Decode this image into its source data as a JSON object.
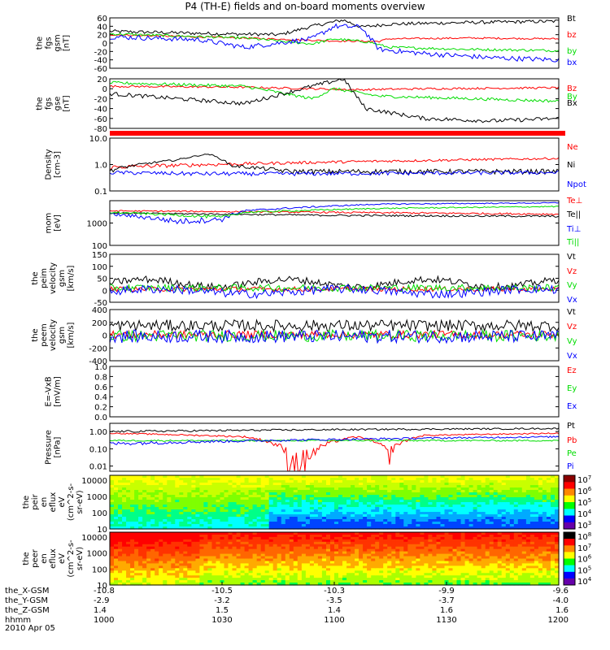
{
  "title": "P4 (TH-E) fields and on-board moments overview",
  "chart_data": [
    {
      "type": "line",
      "ylabel": [
        "the",
        "fgs",
        "gsm",
        "[nT]"
      ],
      "ytick_labels": [
        "60",
        "40",
        "20",
        "0",
        "-20",
        "-40",
        "-60"
      ],
      "ylim": [
        -60,
        60
      ],
      "series": [
        {
          "name": "Bt",
          "color": "#000000"
        },
        {
          "name": "bz",
          "color": "#ff0000"
        },
        {
          "name": "by",
          "color": "#00dd00"
        },
        {
          "name": "bx",
          "color": "#0000ff"
        }
      ]
    },
    {
      "type": "line",
      "ylabel": [
        "the",
        "fgs",
        "gse",
        "[nT]"
      ],
      "ytick_labels": [
        "20",
        "0",
        "-20",
        "-40",
        "-60",
        "-80"
      ],
      "ylim": [
        -80,
        20
      ],
      "series": [
        {
          "name": "Bz",
          "color": "#ff0000"
        },
        {
          "name": "By",
          "color": "#00dd00"
        },
        {
          "name": "Bx",
          "color": "#000000"
        }
      ]
    },
    {
      "type": "line",
      "ylabel": [
        "Density",
        "[cm-3]"
      ],
      "ytick_labels": [
        "10.0",
        "1.0",
        "0.1"
      ],
      "ylim": [
        0.1,
        10
      ],
      "yscale": "log",
      "series": [
        {
          "name": "Ne",
          "color": "#ff0000"
        },
        {
          "name": "Ni",
          "color": "#000000"
        },
        {
          "name": "Npot",
          "color": "#0000ff"
        }
      ]
    },
    {
      "type": "line",
      "ylabel": [
        "mom",
        "[eV]"
      ],
      "ytick_labels": [
        "1000",
        "100"
      ],
      "ylim": [
        100,
        10000
      ],
      "yscale": "log",
      "series": [
        {
          "name": "Te⊥",
          "color": "#ff0000"
        },
        {
          "name": "Te||",
          "color": "#000000"
        },
        {
          "name": "Ti⊥",
          "color": "#0000ff"
        },
        {
          "name": "Ti||",
          "color": "#00dd00"
        }
      ]
    },
    {
      "type": "line",
      "ylabel": [
        "the",
        "peim",
        "velocity",
        "gsm",
        "[km/s]"
      ],
      "ytick_labels": [
        "150",
        "100",
        "50",
        "0",
        "-50"
      ],
      "ylim": [
        -50,
        150
      ],
      "series": [
        {
          "name": "Vt",
          "color": "#000000"
        },
        {
          "name": "Vz",
          "color": "#ff0000"
        },
        {
          "name": "Vy",
          "color": "#00dd00"
        },
        {
          "name": "Vx",
          "color": "#0000ff"
        }
      ]
    },
    {
      "type": "line",
      "ylabel": [
        "the",
        "peem",
        "velocity",
        "gsm",
        "[km/s]"
      ],
      "ytick_labels": [
        "400",
        "200",
        "0",
        "-200",
        "-400"
      ],
      "ylim": [
        -400,
        400
      ],
      "series": [
        {
          "name": "Vt",
          "color": "#000000"
        },
        {
          "name": "Vz",
          "color": "#ff0000"
        },
        {
          "name": "Vy",
          "color": "#00dd00"
        },
        {
          "name": "Vx",
          "color": "#0000ff"
        }
      ]
    },
    {
      "type": "line",
      "ylabel": [
        "E=-VxB",
        "[mV/m]"
      ],
      "ytick_labels": [
        "1.0",
        "0.8",
        "0.6",
        "0.4",
        "0.2",
        "0.0"
      ],
      "ylim": [
        0,
        1
      ],
      "series": [
        {
          "name": "Ez",
          "color": "#ff0000"
        },
        {
          "name": "Ey",
          "color": "#00dd00"
        },
        {
          "name": "Ex",
          "color": "#0000ff"
        }
      ]
    },
    {
      "type": "line",
      "ylabel": [
        "Pressure",
        "[nPa]"
      ],
      "ytick_labels": [
        "1.00",
        "0.10",
        "0.01"
      ],
      "ylim": [
        0.005,
        3
      ],
      "yscale": "log",
      "series": [
        {
          "name": "Pt",
          "color": "#000000"
        },
        {
          "name": "Pb",
          "color": "#ff0000"
        },
        {
          "name": "Pe",
          "color": "#00dd00"
        },
        {
          "name": "Pi",
          "color": "#0000ff"
        }
      ]
    },
    {
      "type": "heatmap",
      "ylabel": [
        "the",
        "peir",
        "en",
        "eflux",
        "eV",
        "(cm^2-s-",
        "sr-eV)"
      ],
      "ytick_labels": [
        "10000",
        "1000",
        "100",
        "10"
      ],
      "ylim": [
        10,
        20000
      ],
      "yscale": "log",
      "colorbar_labels": [
        "10^7",
        "10^6",
        "10^5",
        "10^4",
        "10^3"
      ]
    },
    {
      "type": "heatmap",
      "ylabel": [
        "the",
        "peer",
        "en",
        "eflux",
        "eV",
        "(cm^2-s-",
        "sr-eV)"
      ],
      "ytick_labels": [
        "10000",
        "1000",
        "100",
        "10"
      ],
      "ylim": [
        10,
        20000
      ],
      "yscale": "log",
      "colorbar_labels": [
        "10^8",
        "10^7",
        "10^6",
        "10^5",
        "10^4"
      ]
    }
  ],
  "xaxis": {
    "row_labels": [
      "the_X-GSM",
      "the_Y-GSM",
      "the_Z-GSM",
      "hhmm",
      "2010 Apr 05"
    ],
    "columns": [
      {
        "x": "-10.8",
        "y": "-2.9",
        "z": "1.4",
        "hhmm": "1000"
      },
      {
        "x": "-10.5",
        "y": "-3.2",
        "z": "1.5",
        "hhmm": "1030"
      },
      {
        "x": "-10.3",
        "y": "-3.5",
        "z": "1.4",
        "hhmm": "1100"
      },
      {
        "x": "-9.9",
        "y": "-3.7",
        "z": "1.6",
        "hhmm": "1130"
      },
      {
        "x": "-9.6",
        "y": "-4.0",
        "z": "1.6",
        "hhmm": "1200"
      }
    ]
  }
}
